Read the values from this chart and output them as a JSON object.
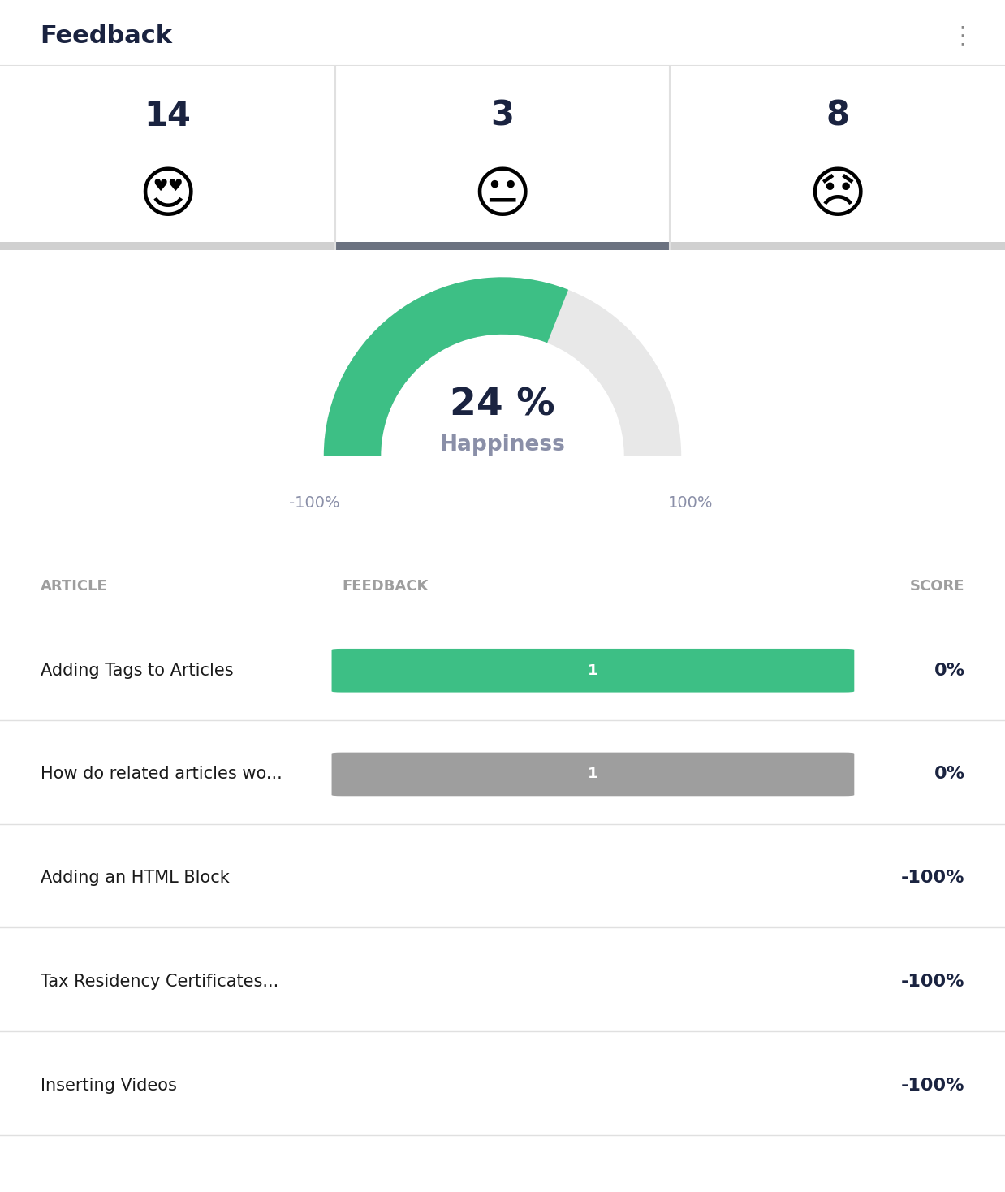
{
  "title": "Feedback",
  "background_color": "#ffffff",
  "emoji_counts": [
    14,
    3,
    8
  ],
  "gauge_value": 24,
  "gauge_label": "Happiness",
  "gauge_color": "#3dbf85",
  "gauge_bg_color": "#e8e8e8",
  "gauge_min": -100,
  "gauge_max": 100,
  "table_header_bg": "#f5f5f5",
  "table_cols": [
    "ARTICLE",
    "FEEDBACK",
    "SCORE"
  ],
  "table_rows": [
    {
      "article": "Adding Tags to Articles",
      "bar_value": 1,
      "bar_color": "#3dbf85",
      "score": "0%"
    },
    {
      "article": "How do related articles wo...",
      "bar_value": 1,
      "bar_color": "#9e9e9e",
      "score": "0%"
    },
    {
      "article": "Adding an HTML Block",
      "bar_value": null,
      "bar_color": null,
      "score": "-100%"
    },
    {
      "article": "Tax Residency Certificates...",
      "bar_value": null,
      "bar_color": null,
      "score": "-100%"
    },
    {
      "article": "Inserting Videos",
      "bar_value": null,
      "bar_color": null,
      "score": "-100%"
    }
  ],
  "title_fontsize": 22,
  "text_dark": "#1a2340",
  "text_gray": "#9e9e9e",
  "divider_color": "#e0e0e0",
  "tab_indicator_color": "#6b7280",
  "score_bold_color": "#1a2340",
  "gauge_label_color": "#8a8fa8",
  "gauge_axis_color": "#8a8fa8"
}
